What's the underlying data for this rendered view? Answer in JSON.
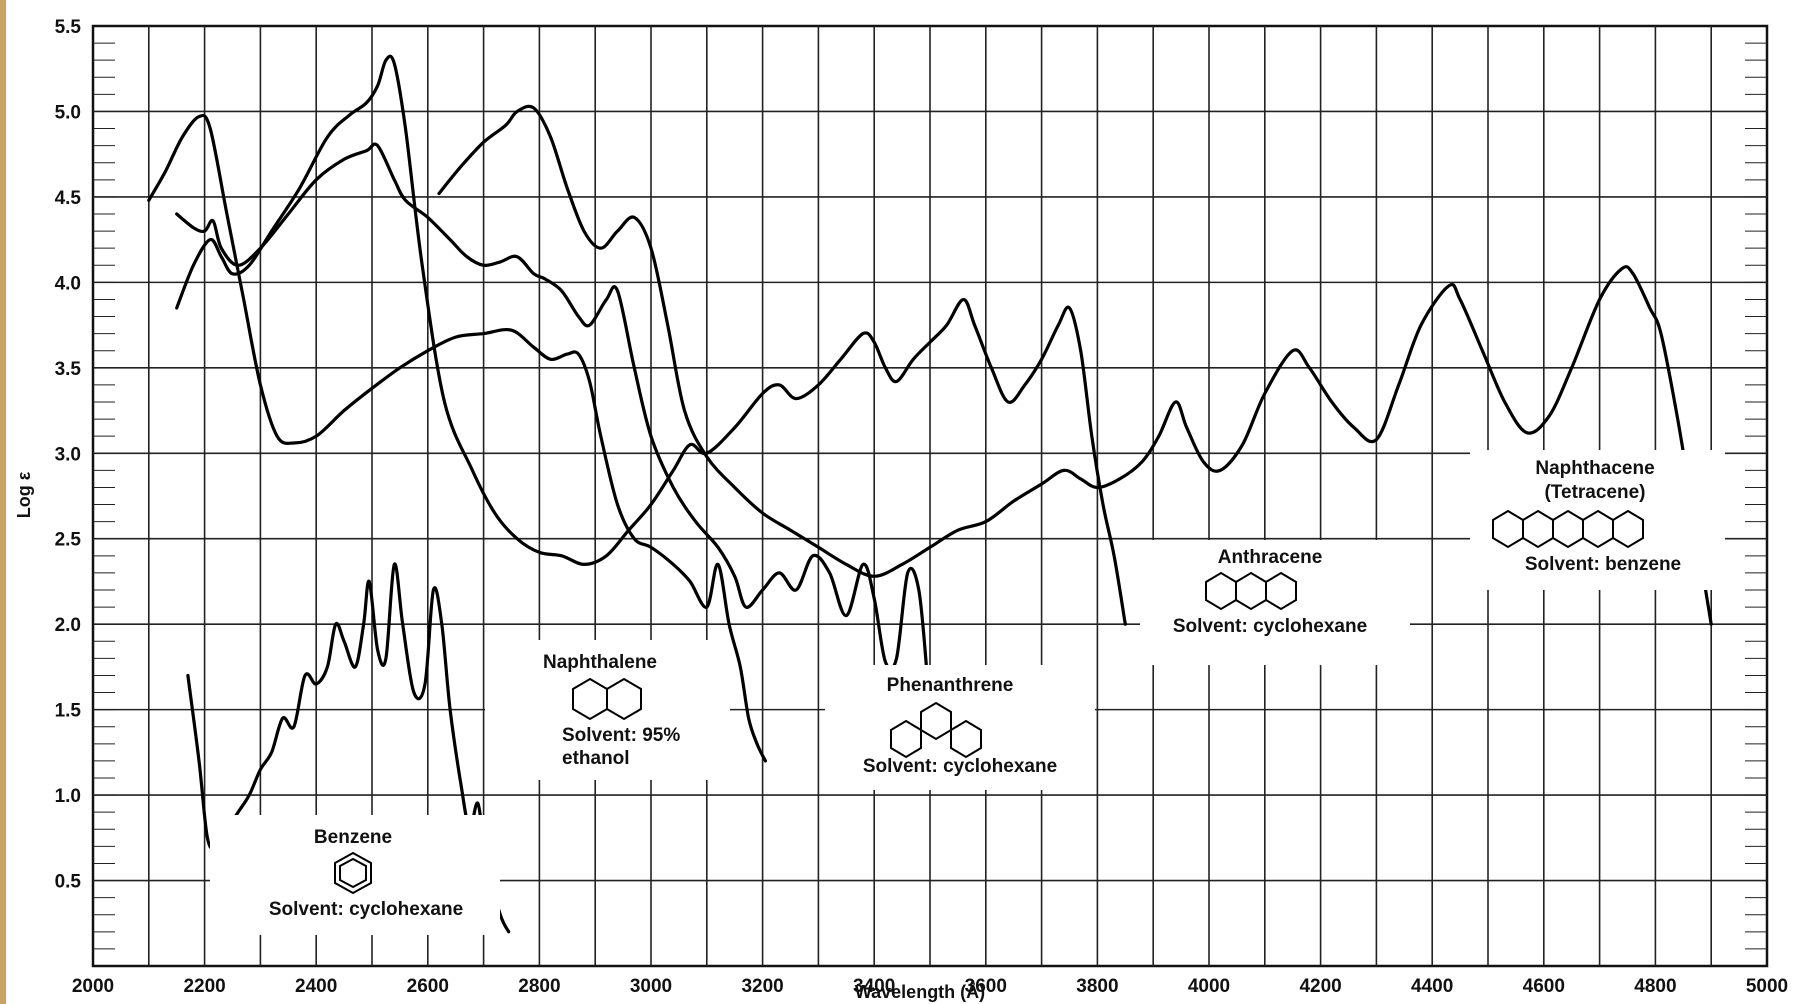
{
  "chart_data": {
    "type": "line",
    "title": "",
    "xlabel": "Wavelength (Å)",
    "ylabel": "Log ε",
    "xlim": [
      2000,
      5000
    ],
    "ylim": [
      0,
      5.5
    ],
    "grid": true,
    "x_ticks": [
      "2000",
      "2200",
      "2400",
      "2600",
      "2800",
      "3000",
      "3200",
      "3400",
      "3600",
      "3800",
      "4000",
      "4200",
      "4400",
      "4600",
      "4800",
      "5000"
    ],
    "y_ticks": [
      "0.5",
      "1.0",
      "1.5",
      "2.0",
      "2.5",
      "3.0",
      "3.5",
      "4.0",
      "4.5",
      "5.0",
      "5.5"
    ],
    "series": [
      {
        "name": "Benzene",
        "points": [
          [
            2170,
            1.7
          ],
          [
            2190,
            1.2
          ],
          [
            2205,
            0.75
          ],
          [
            2220,
            0.7
          ],
          [
            2240,
            0.8
          ],
          [
            2260,
            0.9
          ],
          [
            2280,
            1.0
          ],
          [
            2300,
            1.15
          ],
          [
            2320,
            1.25
          ],
          [
            2340,
            1.45
          ],
          [
            2360,
            1.4
          ],
          [
            2380,
            1.7
          ],
          [
            2400,
            1.65
          ],
          [
            2420,
            1.75
          ],
          [
            2435,
            2.0
          ],
          [
            2450,
            1.9
          ],
          [
            2470,
            1.75
          ],
          [
            2485,
            2.0
          ],
          [
            2495,
            2.25
          ],
          [
            2510,
            1.85
          ],
          [
            2525,
            1.8
          ],
          [
            2540,
            2.35
          ],
          [
            2555,
            2.0
          ],
          [
            2575,
            1.6
          ],
          [
            2595,
            1.65
          ],
          [
            2610,
            2.2
          ],
          [
            2625,
            2.0
          ],
          [
            2640,
            1.5
          ],
          [
            2660,
            1.05
          ],
          [
            2675,
            0.8
          ],
          [
            2690,
            0.95
          ],
          [
            2705,
            0.6
          ],
          [
            2730,
            0.3
          ],
          [
            2745,
            0.2
          ]
        ]
      },
      {
        "name": "Naphthalene",
        "points": [
          [
            2100,
            4.48
          ],
          [
            2130,
            4.65
          ],
          [
            2160,
            4.85
          ],
          [
            2190,
            4.97
          ],
          [
            2210,
            4.9
          ],
          [
            2240,
            4.4
          ],
          [
            2270,
            3.9
          ],
          [
            2300,
            3.4
          ],
          [
            2330,
            3.1
          ],
          [
            2360,
            3.06
          ],
          [
            2400,
            3.1
          ],
          [
            2450,
            3.25
          ],
          [
            2500,
            3.38
          ],
          [
            2550,
            3.5
          ],
          [
            2600,
            3.6
          ],
          [
            2650,
            3.68
          ],
          [
            2700,
            3.7
          ],
          [
            2750,
            3.72
          ],
          [
            2790,
            3.62
          ],
          [
            2820,
            3.55
          ],
          [
            2850,
            3.58
          ],
          [
            2870,
            3.58
          ],
          [
            2890,
            3.42
          ],
          [
            2910,
            3.1
          ],
          [
            2940,
            2.7
          ],
          [
            2970,
            2.5
          ],
          [
            3000,
            2.45
          ],
          [
            3040,
            2.35
          ],
          [
            3070,
            2.25
          ],
          [
            3100,
            2.1
          ],
          [
            3120,
            2.35
          ],
          [
            3140,
            2.0
          ],
          [
            3160,
            1.75
          ],
          [
            3175,
            1.45
          ],
          [
            3190,
            1.3
          ],
          [
            3205,
            1.2
          ]
        ]
      },
      {
        "name": "Phenanthrene",
        "points": [
          [
            2150,
            4.4
          ],
          [
            2180,
            4.32
          ],
          [
            2200,
            4.3
          ],
          [
            2215,
            4.36
          ],
          [
            2230,
            4.2
          ],
          [
            2260,
            4.1
          ],
          [
            2300,
            4.2
          ],
          [
            2350,
            4.4
          ],
          [
            2400,
            4.6
          ],
          [
            2450,
            4.72
          ],
          [
            2490,
            4.77
          ],
          [
            2510,
            4.8
          ],
          [
            2540,
            4.6
          ],
          [
            2560,
            4.48
          ],
          [
            2600,
            4.38
          ],
          [
            2640,
            4.25
          ],
          [
            2670,
            4.15
          ],
          [
            2700,
            4.1
          ],
          [
            2730,
            4.12
          ],
          [
            2760,
            4.15
          ],
          [
            2790,
            4.05
          ],
          [
            2810,
            4.02
          ],
          [
            2840,
            3.95
          ],
          [
            2870,
            3.8
          ],
          [
            2890,
            3.75
          ],
          [
            2920,
            3.9
          ],
          [
            2940,
            3.95
          ],
          [
            2970,
            3.5
          ],
          [
            3000,
            3.1
          ],
          [
            3040,
            2.8
          ],
          [
            3080,
            2.6
          ],
          [
            3120,
            2.45
          ],
          [
            3150,
            2.28
          ],
          [
            3170,
            2.1
          ],
          [
            3200,
            2.2
          ],
          [
            3230,
            2.3
          ],
          [
            3260,
            2.2
          ],
          [
            3290,
            2.4
          ],
          [
            3320,
            2.3
          ],
          [
            3350,
            2.05
          ],
          [
            3380,
            2.35
          ],
          [
            3400,
            2.15
          ],
          [
            3420,
            1.78
          ],
          [
            3440,
            1.8
          ],
          [
            3460,
            2.3
          ],
          [
            3480,
            2.2
          ],
          [
            3495,
            1.7
          ]
        ]
      },
      {
        "name": "Anthracene",
        "points": [
          [
            2150,
            3.85
          ],
          [
            2180,
            4.1
          ],
          [
            2210,
            4.25
          ],
          [
            2230,
            4.15
          ],
          [
            2250,
            4.05
          ],
          [
            2280,
            4.1
          ],
          [
            2320,
            4.3
          ],
          [
            2370,
            4.55
          ],
          [
            2420,
            4.85
          ],
          [
            2460,
            4.98
          ],
          [
            2490,
            5.05
          ],
          [
            2510,
            5.15
          ],
          [
            2525,
            5.3
          ],
          [
            2540,
            5.28
          ],
          [
            2560,
            4.9
          ],
          [
            2590,
            4.1
          ],
          [
            2630,
            3.3
          ],
          [
            2680,
            2.9
          ],
          [
            2720,
            2.65
          ],
          [
            2760,
            2.5
          ],
          [
            2800,
            2.42
          ],
          [
            2840,
            2.4
          ],
          [
            2880,
            2.35
          ],
          [
            2920,
            2.4
          ],
          [
            2960,
            2.55
          ],
          [
            3000,
            2.7
          ],
          [
            3040,
            2.9
          ],
          [
            3070,
            3.05
          ],
          [
            3100,
            3.0
          ],
          [
            3150,
            3.15
          ],
          [
            3200,
            3.35
          ],
          [
            3230,
            3.4
          ],
          [
            3260,
            3.32
          ],
          [
            3300,
            3.4
          ],
          [
            3340,
            3.55
          ],
          [
            3380,
            3.7
          ],
          [
            3400,
            3.65
          ],
          [
            3420,
            3.5
          ],
          [
            3440,
            3.42
          ],
          [
            3470,
            3.55
          ],
          [
            3500,
            3.65
          ],
          [
            3530,
            3.75
          ],
          [
            3560,
            3.9
          ],
          [
            3580,
            3.75
          ],
          [
            3610,
            3.5
          ],
          [
            3640,
            3.3
          ],
          [
            3670,
            3.4
          ],
          [
            3700,
            3.55
          ],
          [
            3730,
            3.75
          ],
          [
            3750,
            3.85
          ],
          [
            3770,
            3.6
          ],
          [
            3790,
            3.1
          ],
          [
            3810,
            2.7
          ],
          [
            3830,
            2.4
          ],
          [
            3850,
            2.0
          ]
        ]
      },
      {
        "name": "Naphthacene (Tetracene)",
        "points": [
          [
            2620,
            4.52
          ],
          [
            2660,
            4.68
          ],
          [
            2700,
            4.82
          ],
          [
            2740,
            4.92
          ],
          [
            2760,
            5.0
          ],
          [
            2790,
            5.02
          ],
          [
            2820,
            4.85
          ],
          [
            2850,
            4.55
          ],
          [
            2880,
            4.3
          ],
          [
            2910,
            4.2
          ],
          [
            2940,
            4.3
          ],
          [
            2970,
            4.38
          ],
          [
            3000,
            4.2
          ],
          [
            3030,
            3.75
          ],
          [
            3060,
            3.25
          ],
          [
            3100,
            2.98
          ],
          [
            3150,
            2.8
          ],
          [
            3200,
            2.65
          ],
          [
            3250,
            2.55
          ],
          [
            3300,
            2.45
          ],
          [
            3350,
            2.35
          ],
          [
            3400,
            2.28
          ],
          [
            3450,
            2.35
          ],
          [
            3500,
            2.45
          ],
          [
            3550,
            2.55
          ],
          [
            3600,
            2.6
          ],
          [
            3650,
            2.72
          ],
          [
            3700,
            2.82
          ],
          [
            3740,
            2.9
          ],
          [
            3770,
            2.85
          ],
          [
            3800,
            2.8
          ],
          [
            3840,
            2.85
          ],
          [
            3880,
            2.95
          ],
          [
            3910,
            3.1
          ],
          [
            3940,
            3.3
          ],
          [
            3960,
            3.15
          ],
          [
            3990,
            2.95
          ],
          [
            4020,
            2.9
          ],
          [
            4060,
            3.05
          ],
          [
            4100,
            3.35
          ],
          [
            4150,
            3.6
          ],
          [
            4180,
            3.5
          ],
          [
            4220,
            3.3
          ],
          [
            4260,
            3.15
          ],
          [
            4300,
            3.08
          ],
          [
            4340,
            3.4
          ],
          [
            4380,
            3.75
          ],
          [
            4430,
            3.98
          ],
          [
            4450,
            3.9
          ],
          [
            4490,
            3.6
          ],
          [
            4530,
            3.3
          ],
          [
            4570,
            3.12
          ],
          [
            4610,
            3.22
          ],
          [
            4650,
            3.5
          ],
          [
            4700,
            3.9
          ],
          [
            4740,
            4.08
          ],
          [
            4760,
            4.05
          ],
          [
            4790,
            3.85
          ],
          [
            4810,
            3.7
          ],
          [
            4840,
            3.2
          ],
          [
            4870,
            2.6
          ],
          [
            4900,
            2.0
          ]
        ]
      }
    ],
    "annotations": [
      {
        "name": "Benzene",
        "solvent": "Solvent: cyclohexane"
      },
      {
        "name": "Naphthalene",
        "solvent": "Solvent: 95%",
        "solvent2": "ethanol"
      },
      {
        "name": "Phenanthrene",
        "solvent": "Solvent: cyclohexane"
      },
      {
        "name": "Anthracene",
        "solvent": "Solvent: cyclohexane"
      },
      {
        "name": "Naphthacene",
        "name2": "(Tetracene)",
        "solvent": "Solvent: benzene"
      }
    ]
  }
}
